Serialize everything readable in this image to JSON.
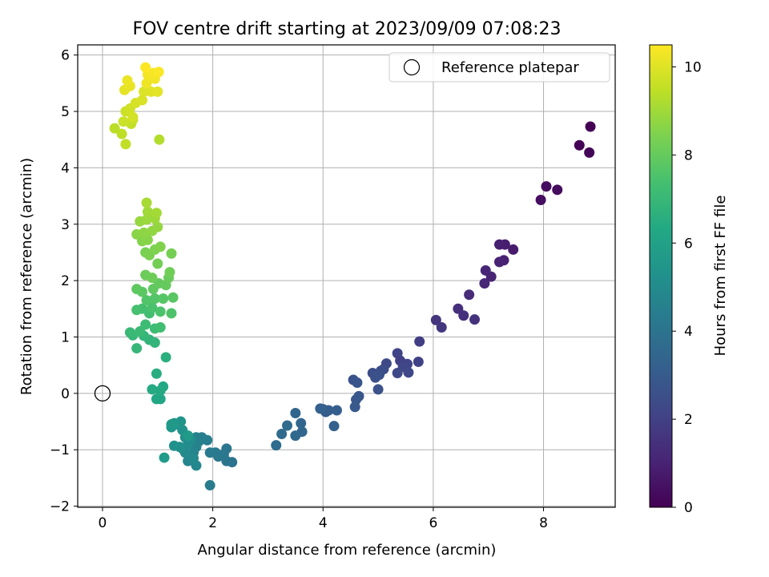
{
  "chart_data": {
    "type": "scatter",
    "title": "FOV centre drift starting at 2023/09/09 07:08:23",
    "xlabel": "Angular distance from reference (arcmin)",
    "ylabel": "Rotation from reference (arcmin)",
    "xlim": [
      -0.45,
      9.3
    ],
    "ylim": [
      -2.02,
      6.18
    ],
    "xticks": [
      "0",
      "2",
      "4",
      "6",
      "8"
    ],
    "yticks": [
      "−2",
      "−1",
      "0",
      "1",
      "2",
      "3",
      "4",
      "5",
      "6"
    ],
    "grid": true,
    "legend": {
      "placement": "top-right",
      "entries": [
        "Reference platepar"
      ]
    },
    "reference_point": {
      "x": 0,
      "y": 0
    },
    "colorbar": {
      "label": "Hours from first FF file",
      "range": [
        0,
        10.5
      ],
      "ticks": [
        "0",
        "2",
        "4",
        "6",
        "8",
        "10"
      ],
      "colormap": "viridis"
    },
    "points": [
      {
        "x": 8.85,
        "y": 4.73,
        "h": 0.0
      },
      {
        "x": 8.65,
        "y": 4.4,
        "h": 0.05
      },
      {
        "x": 8.83,
        "y": 4.27,
        "h": 0.1
      },
      {
        "x": 8.25,
        "y": 3.61,
        "h": 0.3
      },
      {
        "x": 8.05,
        "y": 3.67,
        "h": 0.35
      },
      {
        "x": 7.95,
        "y": 3.43,
        "h": 0.4
      },
      {
        "x": 7.45,
        "y": 2.55,
        "h": 0.8
      },
      {
        "x": 7.3,
        "y": 2.64,
        "h": 0.85
      },
      {
        "x": 7.2,
        "y": 2.64,
        "h": 0.9
      },
      {
        "x": 7.28,
        "y": 2.36,
        "h": 0.95
      },
      {
        "x": 7.2,
        "y": 2.33,
        "h": 1.0
      },
      {
        "x": 7.05,
        "y": 2.07,
        "h": 1.05
      },
      {
        "x": 6.95,
        "y": 2.18,
        "h": 1.1
      },
      {
        "x": 6.93,
        "y": 1.95,
        "h": 1.15
      },
      {
        "x": 6.65,
        "y": 1.75,
        "h": 1.3
      },
      {
        "x": 6.45,
        "y": 1.5,
        "h": 1.4
      },
      {
        "x": 6.55,
        "y": 1.38,
        "h": 1.45
      },
      {
        "x": 6.75,
        "y": 1.31,
        "h": 1.5
      },
      {
        "x": 6.05,
        "y": 1.3,
        "h": 1.6
      },
      {
        "x": 6.15,
        "y": 1.17,
        "h": 1.65
      },
      {
        "x": 5.75,
        "y": 0.92,
        "h": 1.9
      },
      {
        "x": 5.4,
        "y": 0.58,
        "h": 2.0
      },
      {
        "x": 5.73,
        "y": 0.56,
        "h": 2.05
      },
      {
        "x": 5.35,
        "y": 0.71,
        "h": 2.1
      },
      {
        "x": 5.53,
        "y": 0.52,
        "h": 2.15
      },
      {
        "x": 5.45,
        "y": 0.47,
        "h": 2.2
      },
      {
        "x": 5.55,
        "y": 0.37,
        "h": 2.25
      },
      {
        "x": 5.35,
        "y": 0.36,
        "h": 2.3
      },
      {
        "x": 5.15,
        "y": 0.53,
        "h": 2.35
      },
      {
        "x": 5.1,
        "y": 0.43,
        "h": 2.4
      },
      {
        "x": 5.05,
        "y": 0.4,
        "h": 2.45
      },
      {
        "x": 4.9,
        "y": 0.36,
        "h": 2.5
      },
      {
        "x": 4.95,
        "y": 0.28,
        "h": 2.55
      },
      {
        "x": 5.02,
        "y": 0.33,
        "h": 2.6
      },
      {
        "x": 5.0,
        "y": 0.07,
        "h": 2.65
      },
      {
        "x": 4.55,
        "y": 0.24,
        "h": 2.7
      },
      {
        "x": 4.62,
        "y": 0.19,
        "h": 2.75
      },
      {
        "x": 4.65,
        "y": -0.05,
        "h": 2.8
      },
      {
        "x": 4.6,
        "y": -0.11,
        "h": 2.85
      },
      {
        "x": 4.58,
        "y": -0.24,
        "h": 2.9
      },
      {
        "x": 4.0,
        "y": -0.28,
        "h": 3.0
      },
      {
        "x": 4.05,
        "y": -0.33,
        "h": 3.05
      },
      {
        "x": 4.1,
        "y": -0.3,
        "h": 3.1
      },
      {
        "x": 4.25,
        "y": -0.3,
        "h": 3.15
      },
      {
        "x": 4.2,
        "y": -0.58,
        "h": 3.2
      },
      {
        "x": 3.95,
        "y": -0.27,
        "h": 3.25
      },
      {
        "x": 3.5,
        "y": -0.35,
        "h": 3.4
      },
      {
        "x": 3.6,
        "y": -0.53,
        "h": 3.45
      },
      {
        "x": 3.62,
        "y": -0.68,
        "h": 3.5
      },
      {
        "x": 3.5,
        "y": -0.75,
        "h": 3.55
      },
      {
        "x": 3.35,
        "y": -0.57,
        "h": 3.6
      },
      {
        "x": 3.25,
        "y": -0.72,
        "h": 3.65
      },
      {
        "x": 3.15,
        "y": -0.92,
        "h": 3.7
      },
      {
        "x": 2.35,
        "y": -1.22,
        "h": 4.0
      },
      {
        "x": 2.25,
        "y": -1.2,
        "h": 4.05
      },
      {
        "x": 2.25,
        "y": -0.98,
        "h": 4.1
      },
      {
        "x": 2.2,
        "y": -1.08,
        "h": 4.15
      },
      {
        "x": 2.1,
        "y": -1.12,
        "h": 4.2
      },
      {
        "x": 2.05,
        "y": -1.05,
        "h": 4.25
      },
      {
        "x": 1.95,
        "y": -1.05,
        "h": 4.3
      },
      {
        "x": 1.95,
        "y": -1.63,
        "h": 4.35
      },
      {
        "x": 1.9,
        "y": -0.83,
        "h": 4.4
      },
      {
        "x": 1.8,
        "y": -0.78,
        "h": 4.45
      },
      {
        "x": 1.75,
        "y": -0.85,
        "h": 4.5
      },
      {
        "x": 1.7,
        "y": -0.78,
        "h": 4.55
      },
      {
        "x": 1.65,
        "y": -0.82,
        "h": 4.6
      },
      {
        "x": 1.7,
        "y": -0.95,
        "h": 4.65
      },
      {
        "x": 1.65,
        "y": -1.05,
        "h": 4.7
      },
      {
        "x": 1.6,
        "y": -1.1,
        "h": 4.75
      },
      {
        "x": 1.55,
        "y": -1.2,
        "h": 4.8
      },
      {
        "x": 1.7,
        "y": -1.28,
        "h": 4.85
      },
      {
        "x": 1.65,
        "y": -1.15,
        "h": 4.9
      },
      {
        "x": 1.5,
        "y": -1.05,
        "h": 4.95
      },
      {
        "x": 1.45,
        "y": -0.98,
        "h": 5.0
      },
      {
        "x": 1.55,
        "y": -0.9,
        "h": 5.05
      },
      {
        "x": 1.6,
        "y": -0.82,
        "h": 5.1
      },
      {
        "x": 1.5,
        "y": -0.78,
        "h": 5.15
      },
      {
        "x": 1.4,
        "y": -0.95,
        "h": 5.2
      },
      {
        "x": 1.3,
        "y": -0.93,
        "h": 5.25
      },
      {
        "x": 1.45,
        "y": -0.65,
        "h": 5.35
      },
      {
        "x": 1.35,
        "y": -0.55,
        "h": 5.4
      },
      {
        "x": 1.42,
        "y": -0.5,
        "h": 5.45
      },
      {
        "x": 1.25,
        "y": -0.6,
        "h": 5.5
      },
      {
        "x": 1.3,
        "y": -0.53,
        "h": 5.55
      },
      {
        "x": 1.25,
        "y": -0.55,
        "h": 5.6
      },
      {
        "x": 1.55,
        "y": -0.75,
        "h": 5.65
      },
      {
        "x": 1.12,
        "y": -1.14,
        "h": 5.7
      },
      {
        "x": 1.05,
        "y": -0.1,
        "h": 6.2
      },
      {
        "x": 0.98,
        "y": -0.1,
        "h": 6.25
      },
      {
        "x": 1.1,
        "y": 0.12,
        "h": 6.3
      },
      {
        "x": 1.05,
        "y": 0.05,
        "h": 6.35
      },
      {
        "x": 0.9,
        "y": 0.07,
        "h": 6.4
      },
      {
        "x": 0.98,
        "y": 0.35,
        "h": 6.5
      },
      {
        "x": 1.15,
        "y": 0.64,
        "h": 6.6
      },
      {
        "x": 0.85,
        "y": 0.95,
        "h": 6.8
      },
      {
        "x": 0.95,
        "y": 0.9,
        "h": 6.85
      },
      {
        "x": 0.75,
        "y": 1.02,
        "h": 6.9
      },
      {
        "x": 0.62,
        "y": 0.8,
        "h": 6.95
      },
      {
        "x": 0.55,
        "y": 1.03,
        "h": 7.0
      },
      {
        "x": 0.5,
        "y": 1.08,
        "h": 7.05
      },
      {
        "x": 0.68,
        "y": 1.1,
        "h": 7.1
      },
      {
        "x": 0.78,
        "y": 1.22,
        "h": 7.15
      },
      {
        "x": 0.95,
        "y": 1.15,
        "h": 7.2
      },
      {
        "x": 1.05,
        "y": 1.17,
        "h": 7.25
      },
      {
        "x": 0.85,
        "y": 1.42,
        "h": 7.3
      },
      {
        "x": 0.72,
        "y": 1.5,
        "h": 7.35
      },
      {
        "x": 0.62,
        "y": 1.48,
        "h": 7.4
      },
      {
        "x": 0.9,
        "y": 1.52,
        "h": 7.45
      },
      {
        "x": 1.05,
        "y": 1.45,
        "h": 7.5
      },
      {
        "x": 1.25,
        "y": 1.42,
        "h": 7.55
      },
      {
        "x": 0.8,
        "y": 1.65,
        "h": 7.6
      },
      {
        "x": 0.95,
        "y": 1.68,
        "h": 7.65
      },
      {
        "x": 1.1,
        "y": 1.68,
        "h": 7.7
      },
      {
        "x": 1.28,
        "y": 1.7,
        "h": 7.75
      },
      {
        "x": 0.72,
        "y": 1.8,
        "h": 7.8
      },
      {
        "x": 0.62,
        "y": 1.85,
        "h": 7.85
      },
      {
        "x": 0.92,
        "y": 1.85,
        "h": 7.9
      },
      {
        "x": 1.02,
        "y": 1.95,
        "h": 7.95
      },
      {
        "x": 1.15,
        "y": 1.92,
        "h": 8.0
      },
      {
        "x": 1.2,
        "y": 2.05,
        "h": 8.05
      },
      {
        "x": 0.78,
        "y": 2.1,
        "h": 8.1
      },
      {
        "x": 0.9,
        "y": 2.05,
        "h": 8.15
      },
      {
        "x": 1.22,
        "y": 2.15,
        "h": 8.2
      },
      {
        "x": 1.0,
        "y": 2.3,
        "h": 8.25
      },
      {
        "x": 1.25,
        "y": 2.48,
        "h": 8.3
      },
      {
        "x": 0.78,
        "y": 2.5,
        "h": 8.35
      },
      {
        "x": 0.85,
        "y": 2.45,
        "h": 8.4
      },
      {
        "x": 0.95,
        "y": 2.55,
        "h": 8.45
      },
      {
        "x": 1.05,
        "y": 2.6,
        "h": 8.5
      },
      {
        "x": 0.72,
        "y": 2.7,
        "h": 8.55
      },
      {
        "x": 0.82,
        "y": 2.72,
        "h": 8.6
      },
      {
        "x": 0.62,
        "y": 2.82,
        "h": 8.65
      },
      {
        "x": 0.75,
        "y": 2.85,
        "h": 8.7
      },
      {
        "x": 0.9,
        "y": 2.88,
        "h": 8.75
      },
      {
        "x": 1.0,
        "y": 2.95,
        "h": 8.8
      },
      {
        "x": 0.68,
        "y": 3.05,
        "h": 8.85
      },
      {
        "x": 0.8,
        "y": 3.08,
        "h": 8.9
      },
      {
        "x": 0.95,
        "y": 3.1,
        "h": 8.95
      },
      {
        "x": 0.82,
        "y": 3.22,
        "h": 9.0
      },
      {
        "x": 0.98,
        "y": 3.2,
        "h": 9.05
      },
      {
        "x": 0.8,
        "y": 3.38,
        "h": 9.1
      },
      {
        "x": 1.03,
        "y": 4.5,
        "h": 9.3
      },
      {
        "x": 0.22,
        "y": 4.7,
        "h": 9.4
      },
      {
        "x": 0.35,
        "y": 4.6,
        "h": 9.45
      },
      {
        "x": 0.42,
        "y": 4.42,
        "h": 9.5
      },
      {
        "x": 0.52,
        "y": 4.78,
        "h": 9.55
      },
      {
        "x": 0.55,
        "y": 4.85,
        "h": 9.6
      },
      {
        "x": 0.38,
        "y": 4.82,
        "h": 9.65
      },
      {
        "x": 0.42,
        "y": 5.0,
        "h": 9.7
      },
      {
        "x": 0.5,
        "y": 5.05,
        "h": 9.75
      },
      {
        "x": 0.55,
        "y": 4.9,
        "h": 9.8
      },
      {
        "x": 0.6,
        "y": 5.15,
        "h": 9.85
      },
      {
        "x": 0.72,
        "y": 5.2,
        "h": 9.9
      },
      {
        "x": 0.75,
        "y": 5.35,
        "h": 9.95
      },
      {
        "x": 0.88,
        "y": 5.35,
        "h": 10.0
      },
      {
        "x": 1.0,
        "y": 5.35,
        "h": 10.05
      },
      {
        "x": 0.4,
        "y": 5.38,
        "h": 10.1
      },
      {
        "x": 0.5,
        "y": 5.45,
        "h": 10.15
      },
      {
        "x": 0.45,
        "y": 5.55,
        "h": 10.2
      },
      {
        "x": 0.8,
        "y": 5.5,
        "h": 10.25
      },
      {
        "x": 0.95,
        "y": 5.58,
        "h": 10.3
      },
      {
        "x": 0.82,
        "y": 5.65,
        "h": 10.35
      },
      {
        "x": 0.92,
        "y": 5.68,
        "h": 10.4
      },
      {
        "x": 1.02,
        "y": 5.7,
        "h": 10.45
      },
      {
        "x": 0.78,
        "y": 5.78,
        "h": 10.5
      }
    ]
  }
}
